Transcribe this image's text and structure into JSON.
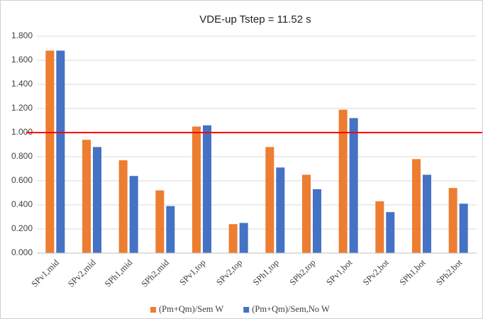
{
  "chart_data": {
    "type": "bar",
    "title": "VDE-up Tstep = 11.52 s",
    "categories": [
      "SPv1,mid",
      "SPv2,mid",
      "SPh1,mid",
      "SPh2,mid",
      "SPv1,top",
      "SPv2,top",
      "SPh1,top",
      "SPh2,top",
      "SPv1,bot",
      "SPv2,bot",
      "SPh1,bot",
      "SPh2,bot"
    ],
    "series": [
      {
        "name": "(Pm+Qm)/Sem W",
        "color": "#ed7d31",
        "values": [
          1.68,
          0.94,
          0.77,
          0.52,
          1.05,
          0.24,
          0.88,
          0.65,
          1.19,
          0.43,
          0.78,
          0.54
        ]
      },
      {
        "name": "(Pm+Qm)/Sem,No W",
        "color": "#4472c4",
        "values": [
          1.68,
          0.88,
          0.64,
          0.39,
          1.06,
          0.25,
          0.71,
          0.53,
          1.12,
          0.34,
          0.65,
          0.41
        ]
      }
    ],
    "ylim": [
      0,
      1.8
    ],
    "yticks": [
      {
        "value": 0,
        "label": "0.000"
      },
      {
        "value": 0.2,
        "label": "0.200"
      },
      {
        "value": 0.4,
        "label": "0.400"
      },
      {
        "value": 0.6,
        "label": "0.600"
      },
      {
        "value": 0.8,
        "label": "0.800"
      },
      {
        "value": 1.0,
        "label": "1.000"
      },
      {
        "value": 1.2,
        "label": "1.200"
      },
      {
        "value": 1.4,
        "label": "1.400"
      },
      {
        "value": 1.6,
        "label": "1.600"
      },
      {
        "value": 1.8,
        "label": "1.800"
      }
    ],
    "grid": true,
    "reference_line": {
      "value": 1.0,
      "color": "#ff0000"
    },
    "legend": "bottom"
  }
}
